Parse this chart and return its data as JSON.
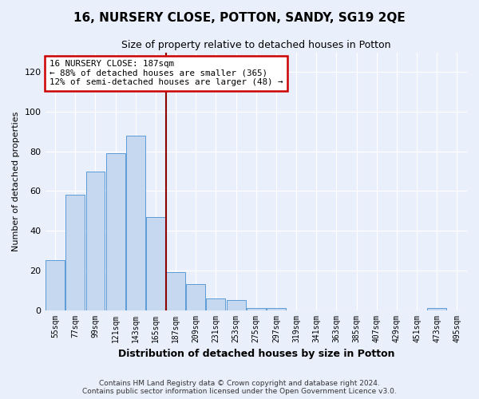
{
  "title": "16, NURSERY CLOSE, POTTON, SANDY, SG19 2QE",
  "subtitle": "Size of property relative to detached houses in Potton",
  "xlabel": "Distribution of detached houses by size in Potton",
  "ylabel": "Number of detached properties",
  "categories": [
    "55sqm",
    "77sqm",
    "99sqm",
    "121sqm",
    "143sqm",
    "165sqm",
    "187sqm",
    "209sqm",
    "231sqm",
    "253sqm",
    "275sqm",
    "297sqm",
    "319sqm",
    "341sqm",
    "363sqm",
    "385sqm",
    "407sqm",
    "429sqm",
    "451sqm",
    "473sqm",
    "495sqm"
  ],
  "values": [
    25,
    58,
    70,
    79,
    88,
    47,
    19,
    13,
    6,
    5,
    1,
    1,
    0,
    0,
    0,
    0,
    0,
    0,
    0,
    1,
    0
  ],
  "bar_color": "#c5d8f0",
  "bar_edge_color": "#5b9bd5",
  "highlight_index": 6,
  "vline_color": "#8b0000",
  "annotation_line1": "16 NURSERY CLOSE: 187sqm",
  "annotation_line2": "← 88% of detached houses are smaller (365)",
  "annotation_line3": "12% of semi-detached houses are larger (48) →",
  "annotation_box_color": "#ffffff",
  "annotation_box_edge_color": "#cc0000",
  "ylim": [
    0,
    130
  ],
  "yticks": [
    0,
    20,
    40,
    60,
    80,
    100,
    120
  ],
  "background_color": "#eaf0fb",
  "grid_color": "#ffffff",
  "footer": "Contains HM Land Registry data © Crown copyright and database right 2024.\nContains public sector information licensed under the Open Government Licence v3.0."
}
